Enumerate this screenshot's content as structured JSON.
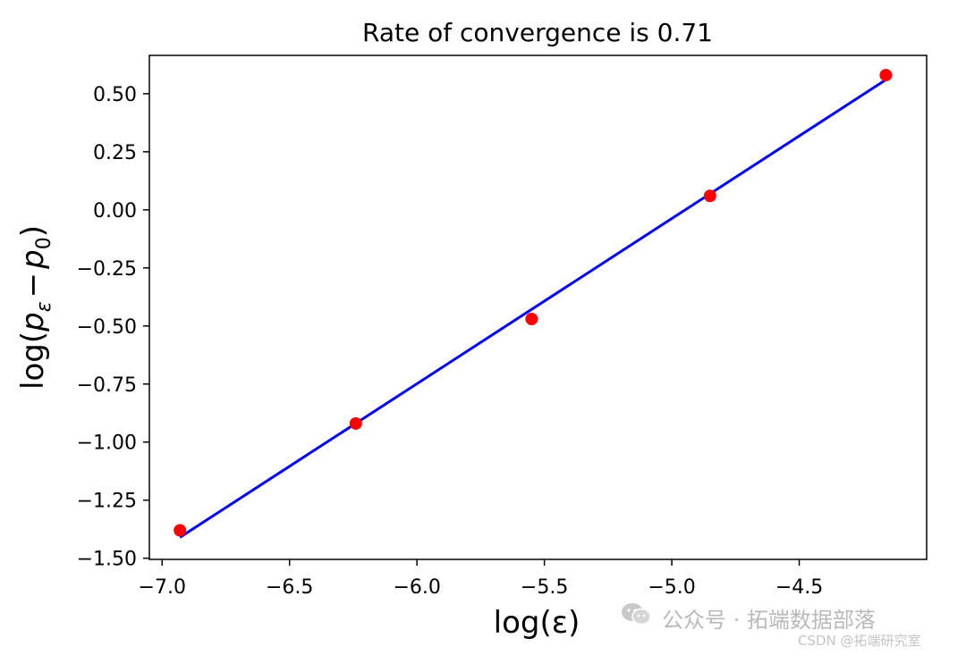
{
  "chart_data": {
    "type": "scatter",
    "title": "Rate of convergence is 0.71",
    "xlabel": "log(ε)",
    "ylabel_parts": {
      "prefix": "log(",
      "p": "p",
      "eps": "ε",
      "minus": "−",
      "p0": "p",
      "zero": "0",
      "suffix": ")"
    },
    "xlim": [
      -7.05,
      -4.0
    ],
    "ylim": [
      -1.505,
      0.665
    ],
    "xticks": [
      -7.0,
      -6.5,
      -6.0,
      -5.5,
      -5.0,
      -4.5
    ],
    "xtick_labels": [
      "−7.0",
      "−6.5",
      "−6.0",
      "−5.5",
      "−5.0",
      "−4.5"
    ],
    "yticks": [
      -1.5,
      -1.25,
      -1.0,
      -0.75,
      -0.5,
      -0.25,
      0.0,
      0.25,
      0.5
    ],
    "ytick_labels": [
      "−1.50",
      "−1.25",
      "−1.00",
      "−0.75",
      "−0.50",
      "−0.25",
      "0.00",
      "0.25",
      "0.50"
    ],
    "grid": false,
    "series": [
      {
        "kind": "scatter",
        "color": "#ff0000",
        "points": [
          {
            "x": -6.93,
            "y": -1.38
          },
          {
            "x": -6.24,
            "y": -0.92
          },
          {
            "x": -5.55,
            "y": -0.47
          },
          {
            "x": -4.85,
            "y": 0.06
          },
          {
            "x": -4.16,
            "y": 0.58
          }
        ]
      },
      {
        "kind": "line",
        "color": "#0000ff",
        "points": [
          {
            "x": -6.93,
            "y": -1.41
          },
          {
            "x": -4.16,
            "y": 0.56
          }
        ]
      }
    ]
  },
  "watermark": {
    "main": "公众号 · 拓端数据部落",
    "sub": "CSDN @拓端研究室"
  }
}
